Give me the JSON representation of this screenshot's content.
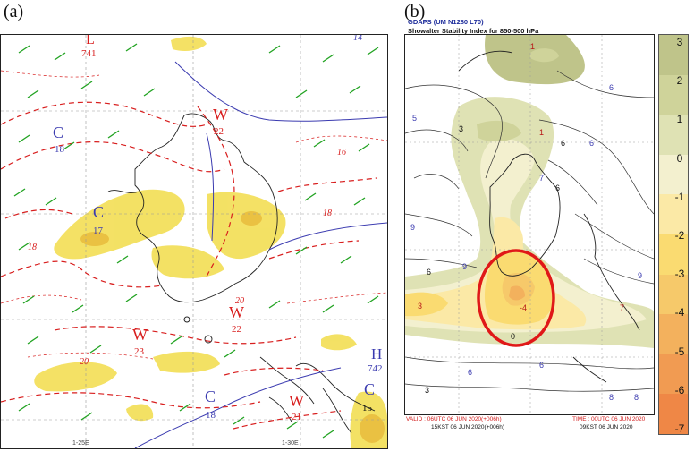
{
  "panels": {
    "a": {
      "label": "(a)"
    },
    "b": {
      "label": "(b)"
    }
  },
  "panel_a": {
    "centers": [
      {
        "type": "L",
        "value": "741"
      },
      {
        "type": "C",
        "value": "18"
      },
      {
        "type": "W",
        "value": "22"
      },
      {
        "type": "C",
        "value": "17"
      },
      {
        "type": "W",
        "value": "22"
      },
      {
        "type": "W",
        "value": "23"
      },
      {
        "type": "W",
        "value": "21"
      },
      {
        "type": "C",
        "value": "18"
      },
      {
        "type": "H",
        "value": "742"
      },
      {
        "type": "C",
        "value": "15"
      }
    ],
    "contour_labels": [
      "16",
      "18",
      "20",
      "20",
      "18",
      "14"
    ],
    "bottom_labels": [
      "1-25E",
      "1-30E"
    ],
    "colors": {
      "isotherm": "#d81e1e",
      "wind": "#21a321",
      "highlight": "#f2dc4a",
      "height_line": "#3b3bb0"
    }
  },
  "panel_b": {
    "title_line1": "GDAPS (UM N1280 L70)",
    "title_line2": "Showalter Stability Index for 850-500 hPa",
    "footer": {
      "valid": "VALID : 06UTC 06 JUN 2020(+006h)",
      "time": "TIME : 00UTC 06 JUN 2020",
      "kst_valid": "15KST 06 JUN 2020(+006h)",
      "kst_time": "09KST 06 JUN 2020"
    },
    "contour_labels": [
      "1",
      "1",
      "5",
      "6",
      "6",
      "7",
      "9",
      "9",
      "9",
      "3",
      "3",
      "6",
      "6",
      "6",
      "0",
      "6",
      "3",
      "-4",
      "7",
      "6",
      "8",
      "8"
    ],
    "highlight_color": "#e01818"
  },
  "colorbar": {
    "ticks": [
      "3",
      "2",
      "1",
      "0",
      "-1",
      "-2",
      "-3",
      "-4",
      "-5",
      "-6",
      "-7"
    ],
    "colors": [
      "#bfc48a",
      "#cfd39a",
      "#dfe2b4",
      "#f3f0cf",
      "#fbe9a6",
      "#fadb71",
      "#f6c96a",
      "#f3b15d",
      "#f19b52",
      "#ef8746"
    ]
  }
}
